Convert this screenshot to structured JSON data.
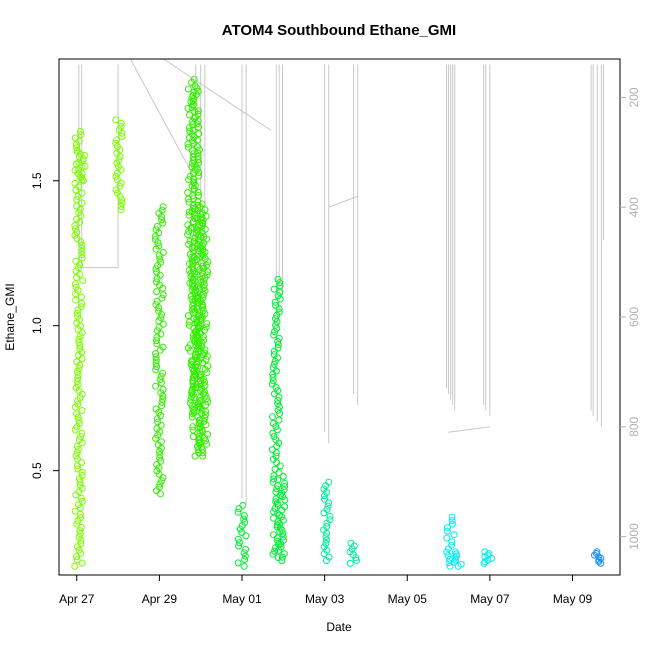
{
  "chart_data": {
    "type": "scatter",
    "title": "ATOM4 Southbound Ethane_GMI",
    "xlabel": "Date",
    "ylabel": "Ethane_GMI",
    "x_ticks": [
      {
        "label": "Apr 27",
        "day": 0
      },
      {
        "label": "Apr 29",
        "day": 2
      },
      {
        "label": "May 01",
        "day": 4
      },
      {
        "label": "May 03",
        "day": 6
      },
      {
        "label": "May 05",
        "day": 8
      },
      {
        "label": "May 07",
        "day": 10
      },
      {
        "label": "May 09",
        "day": 12
      }
    ],
    "xlim_days": [
      -0.43,
      13.15
    ],
    "y_ticks": [
      0.5,
      1.0,
      1.5
    ],
    "y_tick_labels": [
      "0.5",
      "1.0",
      "1.5"
    ],
    "ylim": [
      0.14,
      1.92
    ],
    "right_axis": {
      "ticks": [
        200,
        400,
        600,
        800,
        1000
      ],
      "labels": [
        "200",
        "400",
        "600",
        "800",
        "1000"
      ],
      "lim_top": 130,
      "lim_bottom": 1070,
      "color": "#b0b0b0"
    },
    "grid": false,
    "series": [
      {
        "color": "#7CFC00",
        "clusters": [
          {
            "x": 0.05,
            "y": [
              0.17,
              1.67
            ],
            "dense": true
          },
          {
            "x": 0.12,
            "y": [
              1.5,
              1.6
            ],
            "dense": true
          },
          {
            "x": 1.0,
            "y": [
              1.4,
              1.71
            ],
            "dense": true
          }
        ]
      },
      {
        "color": "#33EE00",
        "clusters": [
          {
            "x": 2.0,
            "y": [
              0.42,
              1.41
            ],
            "dense": true
          },
          {
            "x": 2.78,
            "y": [
              0.7,
              1.85
            ],
            "dense": true
          },
          {
            "x": 2.88,
            "y": [
              0.55,
              1.82
            ],
            "dense": true
          },
          {
            "x": 2.98,
            "y": [
              0.55,
              1.42
            ],
            "dense": true
          },
          {
            "x": 3.08,
            "y": [
              0.58,
              1.4
            ],
            "dense": true
          }
        ]
      },
      {
        "color": "#00EE33",
        "clusters": [
          {
            "x": 4.0,
            "y": [
              0.17,
              0.38
            ],
            "dense": true
          },
          {
            "x": 4.83,
            "y": [
              0.2,
              1.16
            ],
            "dense": true
          },
          {
            "x": 4.95,
            "y": [
              0.19,
              0.48
            ],
            "dense": true
          }
        ]
      },
      {
        "color": "#00EE99",
        "clusters": [
          {
            "x": 6.07,
            "y": [
              0.19,
              0.46
            ],
            "dense": true
          },
          {
            "x": 6.68,
            "y": [
              0.18,
              0.25
            ],
            "dense": true
          }
        ]
      },
      {
        "color": "#00EEEE",
        "clusters": [
          {
            "x": 9.05,
            "y": [
              0.17,
              0.34
            ],
            "dense": true
          },
          {
            "x": 9.22,
            "y": [
              0.17,
              0.22
            ],
            "dense": true
          },
          {
            "x": 9.95,
            "y": [
              0.18,
              0.22
            ],
            "dense": true
          }
        ]
      },
      {
        "color": "#1E90FF",
        "clusters": [
          {
            "x": 12.6,
            "y": [
              0.18,
              0.22
            ],
            "dense": true
          }
        ]
      }
    ],
    "altitude_profile_color": "#c8c8c8"
  }
}
